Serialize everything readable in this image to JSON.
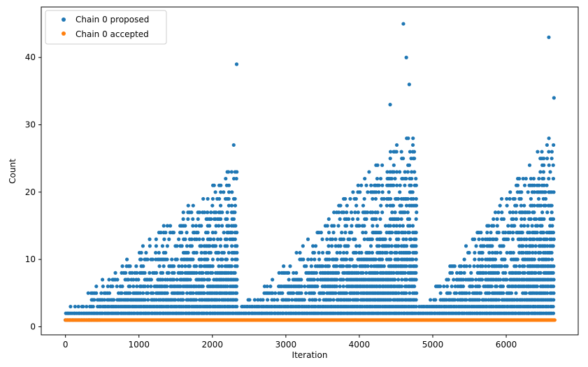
{
  "chart_data": {
    "type": "scatter",
    "xlabel": "Iteration",
    "ylabel": "Count",
    "xlim": [
      -330,
      6980
    ],
    "ylim": [
      -1.2,
      47.5
    ],
    "xticks": [
      0,
      1000,
      2000,
      3000,
      4000,
      5000,
      6000
    ],
    "yticks": [
      0,
      10,
      20,
      30,
      40
    ],
    "xtick_labels": [
      "0",
      "1000",
      "2000",
      "3000",
      "4000",
      "5000",
      "6000"
    ],
    "ytick_labels": [
      "0",
      "10",
      "20",
      "30",
      "40"
    ],
    "legend_position": "top-left",
    "grid": false,
    "x_range": [
      0,
      6660
    ],
    "series": [
      {
        "name": "Chain 0 proposed",
        "color": "#1f77b4",
        "description_points": "dense cloud; three sawtooth cycles peaking near iterations 2300, 4600, 6600",
        "notable_points": [
          {
            "x": 2330,
            "y": 39
          },
          {
            "x": 4600,
            "y": 45
          },
          {
            "x": 4640,
            "y": 40
          },
          {
            "x": 6580,
            "y": 43
          },
          {
            "x": 6650,
            "y": 34
          },
          {
            "x": 4680,
            "y": 36
          },
          {
            "x": 4420,
            "y": 33
          },
          {
            "x": 2290,
            "y": 27
          }
        ],
        "cycles": [
          {
            "start": 0,
            "end": 2350,
            "peak": 24
          },
          {
            "start": 2350,
            "end": 4780,
            "peak": 30
          },
          {
            "start": 4780,
            "end": 6660,
            "peak": 29
          }
        ]
      },
      {
        "name": "Chain 0 accepted",
        "color": "#ff7f0e",
        "constant_value": 1
      }
    ]
  }
}
